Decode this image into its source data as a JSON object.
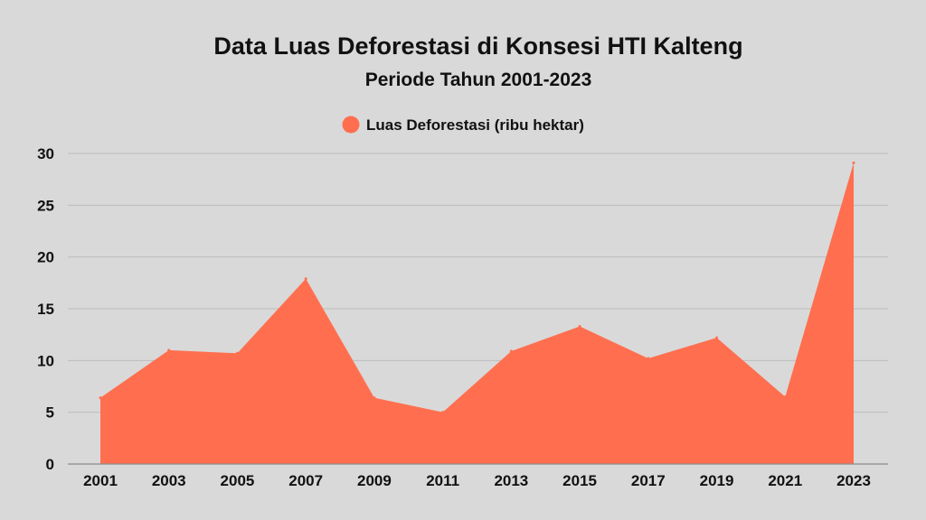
{
  "chart_data": {
    "type": "area",
    "title": "Data Luas Deforestasi di Konsesi HTI Kalteng",
    "subtitle": "Periode Tahun 2001-2023",
    "x": [
      2001,
      2003,
      2005,
      2007,
      2009,
      2011,
      2013,
      2015,
      2017,
      2019,
      2021,
      2023
    ],
    "series": [
      {
        "name": "Luas Deforestasi (ribu hektar)",
        "color": "#ff6f4f",
        "values": [
          6.4,
          11.0,
          10.7,
          17.9,
          6.4,
          5.0,
          10.9,
          13.3,
          10.2,
          12.2,
          6.5,
          29.1
        ]
      }
    ],
    "xlabel": "",
    "ylabel": "",
    "ylim": [
      0,
      30
    ],
    "yticks": [
      0,
      5,
      10,
      15,
      20,
      25,
      30
    ],
    "xticks": [
      "2001",
      "2003",
      "2005",
      "2007",
      "2009",
      "2011",
      "2013",
      "2015",
      "2017",
      "2019",
      "2021",
      "2023"
    ],
    "grid": true,
    "legend_position": "top-center"
  }
}
